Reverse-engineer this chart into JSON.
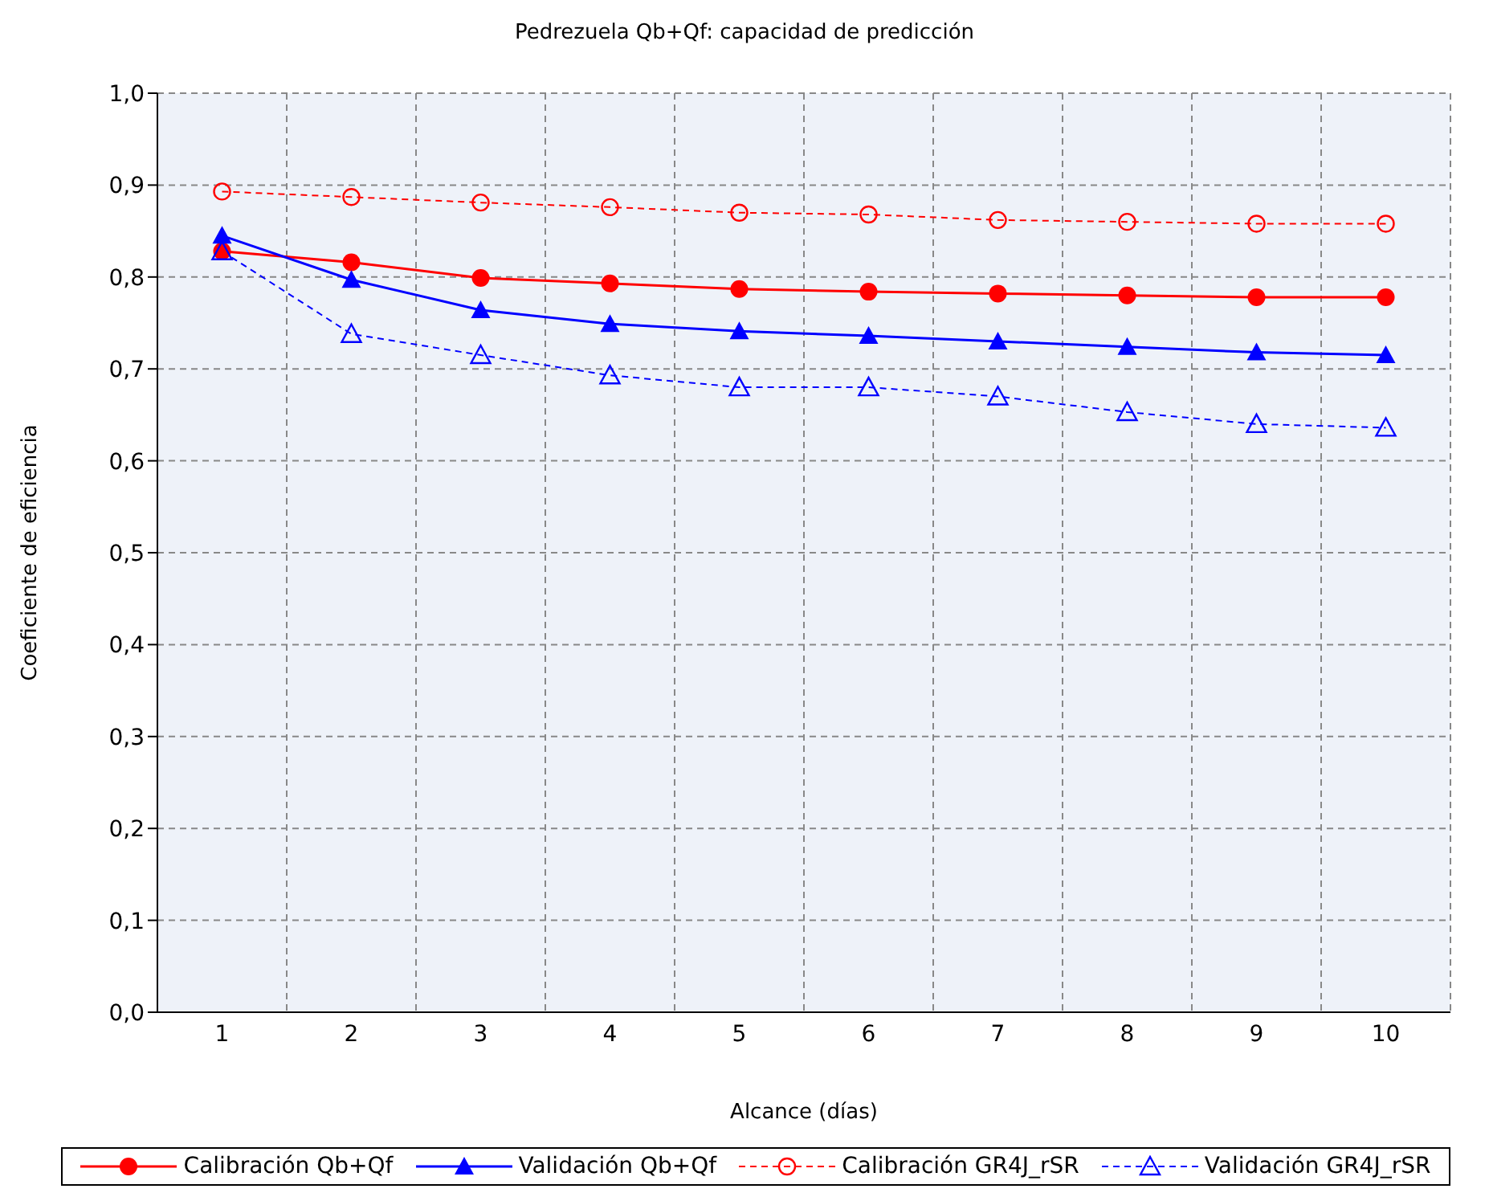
{
  "chart_data": {
    "type": "line",
    "title": "Pedrezuela Qb+Qf: capacidad de predicción",
    "xlabel": "Alcance (días)",
    "ylabel": "Coeficiente de eficiencia",
    "categories": [
      "1",
      "2",
      "3",
      "4",
      "5",
      "6",
      "7",
      "8",
      "9",
      "10"
    ],
    "series": [
      {
        "name": "Calibración Qb+Qf",
        "color": "#ff0000",
        "marker": "circle",
        "line_style": "solid",
        "values": [
          0.828,
          0.816,
          0.799,
          0.793,
          0.787,
          0.784,
          0.782,
          0.78,
          0.778,
          0.778
        ]
      },
      {
        "name": "Validación Qb+Qf",
        "color": "#0000ff",
        "marker": "triangle",
        "line_style": "solid",
        "values": [
          0.845,
          0.797,
          0.764,
          0.749,
          0.741,
          0.736,
          0.73,
          0.724,
          0.718,
          0.715
        ]
      },
      {
        "name": "Calibración GR4J_rSR",
        "color": "#ff0000",
        "marker": "circle",
        "line_style": "dashed",
        "values": [
          0.893,
          0.887,
          0.881,
          0.876,
          0.87,
          0.868,
          0.862,
          0.86,
          0.858,
          0.858
        ]
      },
      {
        "name": "Validación GR4J_rSR",
        "color": "#0000ff",
        "marker": "triangle",
        "line_style": "dashed",
        "values": [
          0.828,
          0.738,
          0.715,
          0.693,
          0.68,
          0.68,
          0.67,
          0.653,
          0.64,
          0.636
        ]
      }
    ],
    "ylim": [
      0,
      1
    ],
    "yticks": [
      {
        "value": 0,
        "label": "0,0"
      },
      {
        "value": 0.1,
        "label": "0,1"
      },
      {
        "value": 0.2,
        "label": "0,2"
      },
      {
        "value": 0.3,
        "label": "0,3"
      },
      {
        "value": 0.4,
        "label": "0,4"
      },
      {
        "value": 0.5,
        "label": "0,5"
      },
      {
        "value": 0.6,
        "label": "0,6"
      },
      {
        "value": 0.7,
        "label": "0,7"
      },
      {
        "value": 0.8,
        "label": "0,8"
      },
      {
        "value": 0.9,
        "label": "0,9"
      },
      {
        "value": 1,
        "label": "1,0"
      }
    ],
    "grid": true,
    "legend": "bottom"
  }
}
